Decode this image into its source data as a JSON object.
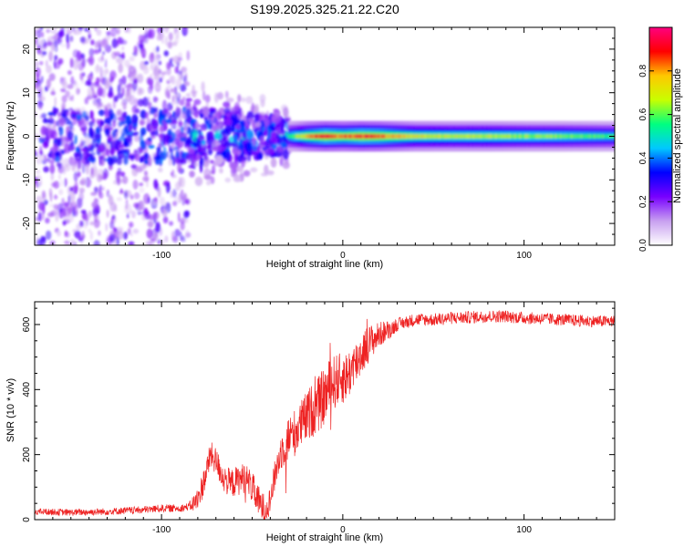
{
  "title": "S199.2025.325.21.22.C20",
  "chart_data": [
    {
      "type": "heatmap",
      "name": "spectrogram",
      "xlabel": "Height of straight line (km)",
      "ylabel": "Frequency (Hz)",
      "xlim": [
        -170,
        150
      ],
      "ylim": [
        -25,
        25
      ],
      "x_ticks": [
        -100,
        0,
        100
      ],
      "x_tick_labels": [
        "-100",
        "0",
        "100"
      ],
      "y_ticks": [
        -20,
        -10,
        0,
        10,
        20
      ],
      "y_tick_labels": [
        "-20",
        "-10",
        "0",
        "10",
        "20"
      ],
      "colorbar": {
        "label": "Normalized spectral amplitude",
        "range": [
          0,
          1
        ],
        "ticks": [
          0,
          0.2,
          0.4,
          0.6,
          0.8
        ],
        "tick_labels": [
          "0.0",
          "0.2",
          "0.4",
          "0.6",
          "0.8"
        ],
        "colors": [
          "#ffffff",
          "#c8a0f0",
          "#7800ff",
          "#0000ff",
          "#00c8ff",
          "#00ff80",
          "#c8ff00",
          "#ffc800",
          "#ff0000",
          "#ff0080"
        ]
      },
      "noise_region": {
        "x_range": [
          -170,
          -85
        ],
        "freq_spread": 25,
        "amplitude": 0.15
      },
      "transition_region": {
        "x_range": [
          -85,
          -30
        ],
        "freq_spread": 7,
        "amplitude": 0.3
      },
      "ridge": {
        "x_range": [
          -30,
          150
        ],
        "center_freq": 0,
        "points": [
          [
            -30,
            0.55
          ],
          [
            -20,
            0.75
          ],
          [
            -10,
            0.85
          ],
          [
            0,
            0.8
          ],
          [
            10,
            0.85
          ],
          [
            20,
            0.82
          ],
          [
            40,
            0.68
          ],
          [
            60,
            0.65
          ],
          [
            80,
            0.65
          ],
          [
            100,
            0.62
          ],
          [
            120,
            0.6
          ],
          [
            150,
            0.55
          ]
        ]
      }
    },
    {
      "type": "line",
      "name": "snr",
      "xlabel": "Height of straight line (km)",
      "ylabel": "SNR (10 * v/v)",
      "xlim": [
        -170,
        150
      ],
      "ylim": [
        0,
        670
      ],
      "x_ticks": [
        -100,
        0,
        100
      ],
      "x_tick_labels": [
        "-100",
        "0",
        "100"
      ],
      "y_ticks": [
        0,
        200,
        400,
        600
      ],
      "y_tick_labels": [
        "0",
        "200",
        "400",
        "600"
      ],
      "color": "#ee2222",
      "points": [
        [
          -170,
          25
        ],
        [
          -150,
          22
        ],
        [
          -130,
          25
        ],
        [
          -110,
          30
        ],
        [
          -100,
          35
        ],
        [
          -90,
          35
        ],
        [
          -85,
          40
        ],
        [
          -80,
          60
        ],
        [
          -76,
          130
        ],
        [
          -73,
          200
        ],
        [
          -70,
          180
        ],
        [
          -66,
          130
        ],
        [
          -62,
          110
        ],
        [
          -58,
          120
        ],
        [
          -54,
          130
        ],
        [
          -50,
          100
        ],
        [
          -46,
          50
        ],
        [
          -43,
          30
        ],
        [
          -40,
          60
        ],
        [
          -37,
          150
        ],
        [
          -34,
          210
        ],
        [
          -30,
          250
        ],
        [
          -26,
          270
        ],
        [
          -22,
          300
        ],
        [
          -18,
          330
        ],
        [
          -14,
          350
        ],
        [
          -10,
          380
        ],
        [
          -6,
          420
        ],
        [
          -2,
          430
        ],
        [
          2,
          440
        ],
        [
          6,
          470
        ],
        [
          10,
          510
        ],
        [
          14,
          540
        ],
        [
          18,
          560
        ],
        [
          22,
          575
        ],
        [
          26,
          585
        ],
        [
          30,
          600
        ],
        [
          40,
          615
        ],
        [
          50,
          615
        ],
        [
          60,
          620
        ],
        [
          70,
          622
        ],
        [
          80,
          625
        ],
        [
          90,
          625
        ],
        [
          100,
          620
        ],
        [
          110,
          618
        ],
        [
          120,
          615
        ],
        [
          130,
          612
        ],
        [
          140,
          610
        ],
        [
          150,
          610
        ]
      ],
      "noise_amplitude": [
        [
          -170,
          10
        ],
        [
          -85,
          12
        ],
        [
          -80,
          40
        ],
        [
          -45,
          50
        ],
        [
          -40,
          40
        ],
        [
          -30,
          70
        ],
        [
          -10,
          90
        ],
        [
          0,
          80
        ],
        [
          10,
          70
        ],
        [
          20,
          40
        ],
        [
          30,
          20
        ],
        [
          150,
          18
        ]
      ]
    }
  ]
}
